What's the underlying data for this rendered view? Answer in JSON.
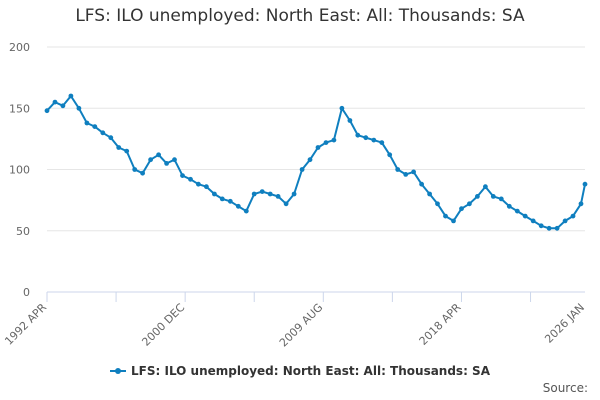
{
  "chart_data": {
    "type": "line",
    "title": "LFS: ILO unemployed: North East: All: Thousands: SA",
    "xlabel": "",
    "ylabel": "",
    "ylim": [
      0,
      200
    ],
    "yticks": [
      0,
      50,
      100,
      150,
      200
    ],
    "xlim": [
      "1992 APR",
      "2026 JAN"
    ],
    "xtick_labels": [
      "1992 APR",
      "2000 DEC",
      "2009 AUG",
      "2018 APR",
      "2026 JAN"
    ],
    "grid": "horizontal",
    "legend": "bottom",
    "series": [
      {
        "name": "LFS: ILO unemployed: North East: All: Thousands: SA",
        "color": "#0f7fbf",
        "x": [
          "1992 APR",
          "1992 OCT",
          "1993 APR",
          "1993 OCT",
          "1994 APR",
          "1994 OCT",
          "1995 APR",
          "1995 OCT",
          "1996 APR",
          "1996 OCT",
          "1997 APR",
          "1997 OCT",
          "1998 APR",
          "1998 OCT",
          "1999 APR",
          "1999 OCT",
          "2000 APR",
          "2000 OCT",
          "2001 APR",
          "2001 OCT",
          "2002 APR",
          "2002 OCT",
          "2003 APR",
          "2003 OCT",
          "2004 APR",
          "2004 OCT",
          "2005 APR",
          "2005 OCT",
          "2006 APR",
          "2006 OCT",
          "2007 APR",
          "2007 OCT",
          "2008 APR",
          "2008 OCT",
          "2009 APR",
          "2009 OCT",
          "2010 APR",
          "2010 OCT",
          "2011 APR",
          "2011 OCT",
          "2012 APR",
          "2012 OCT",
          "2013 APR",
          "2013 OCT",
          "2014 APR",
          "2014 OCT",
          "2015 APR",
          "2015 OCT",
          "2016 APR",
          "2016 OCT",
          "2017 APR",
          "2017 OCT",
          "2018 APR",
          "2018 OCT",
          "2019 APR",
          "2019 OCT",
          "2020 APR",
          "2020 OCT",
          "2021 APR",
          "2021 OCT",
          "2022 APR",
          "2022 OCT",
          "2023 APR",
          "2023 OCT",
          "2024 APR",
          "2024 OCT",
          "2025 APR",
          "2025 OCT",
          "2026 JAN"
        ],
        "values": [
          148,
          155,
          152,
          160,
          150,
          138,
          135,
          130,
          126,
          118,
          115,
          100,
          97,
          108,
          112,
          105,
          108,
          95,
          92,
          88,
          86,
          80,
          76,
          74,
          70,
          66,
          80,
          82,
          80,
          78,
          72,
          80,
          100,
          108,
          118,
          122,
          124,
          150,
          140,
          128,
          126,
          124,
          122,
          112,
          100,
          96,
          98,
          88,
          80,
          72,
          62,
          58,
          68,
          72,
          78,
          86,
          78,
          76,
          70,
          66,
          62,
          58,
          54,
          52,
          52,
          58,
          62,
          72,
          88
        ]
      }
    ]
  },
  "source_label": "Source:"
}
